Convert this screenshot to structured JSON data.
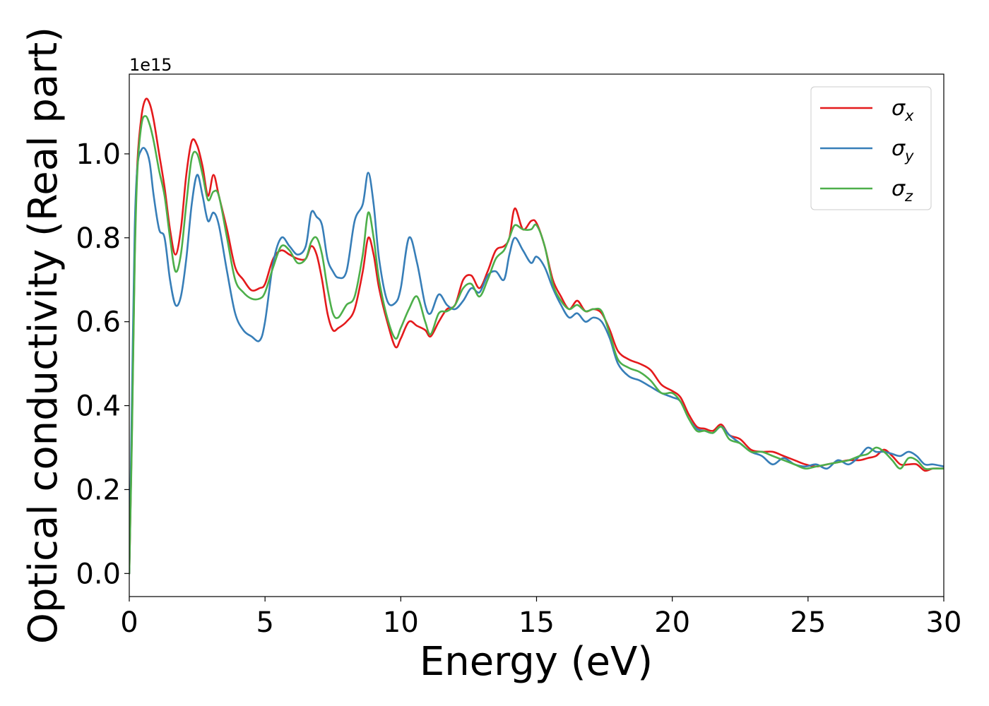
{
  "chart_data": {
    "type": "line",
    "xlabel": "Energy (eV)",
    "ylabel": "Optical conductivity (Real part)",
    "y_offset_label": "1e15",
    "xlim": [
      0,
      30
    ],
    "ylim": [
      -0.055,
      1.19
    ],
    "x_ticks": [
      0,
      5,
      10,
      15,
      20,
      25,
      30
    ],
    "x_tick_labels": [
      "0",
      "5",
      "10",
      "15",
      "20",
      "25",
      "30"
    ],
    "y_ticks": [
      0.0,
      0.2,
      0.4,
      0.6,
      0.8,
      1.0
    ],
    "y_tick_labels": [
      "0.0",
      "0.2",
      "0.4",
      "0.6",
      "0.8",
      "1.0"
    ],
    "grid": false,
    "legend_position": "top-right",
    "series": [
      {
        "name": "σx",
        "legend_symbol": "σ",
        "legend_subscript": "x",
        "color": "#e41a1c",
        "x": [
          0,
          0.1,
          0.2,
          0.3,
          0.45,
          0.6,
          0.75,
          0.9,
          1.1,
          1.3,
          1.5,
          1.7,
          1.9,
          2.1,
          2.3,
          2.5,
          2.7,
          2.9,
          3.1,
          3.3,
          3.6,
          3.9,
          4.2,
          4.5,
          4.8,
          5.0,
          5.3,
          5.6,
          5.9,
          6.2,
          6.5,
          6.7,
          6.9,
          7.1,
          7.3,
          7.5,
          7.7,
          8.0,
          8.3,
          8.6,
          8.8,
          9.0,
          9.2,
          9.5,
          9.8,
          10.0,
          10.3,
          10.6,
          10.9,
          11.1,
          11.4,
          11.7,
          12.0,
          12.3,
          12.6,
          12.9,
          13.2,
          13.5,
          13.8,
          14.0,
          14.2,
          14.5,
          14.8,
          15.0,
          15.3,
          15.6,
          15.9,
          16.2,
          16.5,
          16.8,
          17.1,
          17.4,
          17.7,
          18.0,
          18.4,
          18.8,
          19.2,
          19.6,
          20.0,
          20.3,
          20.6,
          20.9,
          21.2,
          21.5,
          21.8,
          22.1,
          22.5,
          22.9,
          23.3,
          23.7,
          24.1,
          24.5,
          24.9,
          25.3,
          25.7,
          26.1,
          26.5,
          26.9,
          27.2,
          27.5,
          27.8,
          28.1,
          28.4,
          28.7,
          29.0,
          29.3,
          29.6,
          30.0
        ],
        "values": [
          0.0,
          0.35,
          0.76,
          0.98,
          1.09,
          1.13,
          1.12,
          1.08,
          1.0,
          0.92,
          0.82,
          0.76,
          0.82,
          0.95,
          1.03,
          1.02,
          0.97,
          0.9,
          0.95,
          0.9,
          0.82,
          0.73,
          0.7,
          0.675,
          0.68,
          0.69,
          0.75,
          0.77,
          0.76,
          0.75,
          0.75,
          0.78,
          0.76,
          0.7,
          0.62,
          0.58,
          0.585,
          0.6,
          0.63,
          0.72,
          0.8,
          0.76,
          0.68,
          0.6,
          0.54,
          0.56,
          0.6,
          0.59,
          0.58,
          0.565,
          0.6,
          0.63,
          0.64,
          0.7,
          0.71,
          0.68,
          0.72,
          0.77,
          0.78,
          0.8,
          0.87,
          0.82,
          0.84,
          0.835,
          0.78,
          0.7,
          0.66,
          0.63,
          0.65,
          0.625,
          0.63,
          0.62,
          0.58,
          0.53,
          0.51,
          0.5,
          0.485,
          0.45,
          0.435,
          0.42,
          0.38,
          0.35,
          0.345,
          0.34,
          0.355,
          0.33,
          0.32,
          0.295,
          0.29,
          0.29,
          0.28,
          0.27,
          0.26,
          0.255,
          0.26,
          0.265,
          0.27,
          0.27,
          0.275,
          0.28,
          0.295,
          0.28,
          0.26,
          0.26,
          0.26,
          0.245,
          0.25,
          0.25
        ]
      },
      {
        "name": "σy",
        "legend_symbol": "σ",
        "legend_subscript": "y",
        "color": "#377eb8",
        "x": [
          0,
          0.1,
          0.2,
          0.3,
          0.45,
          0.6,
          0.75,
          0.9,
          1.1,
          1.3,
          1.5,
          1.7,
          1.9,
          2.1,
          2.3,
          2.5,
          2.7,
          2.9,
          3.1,
          3.3,
          3.6,
          3.9,
          4.2,
          4.5,
          4.8,
          5.0,
          5.3,
          5.6,
          5.9,
          6.2,
          6.5,
          6.7,
          6.9,
          7.1,
          7.3,
          7.5,
          7.7,
          8.0,
          8.3,
          8.6,
          8.8,
          9.0,
          9.2,
          9.5,
          9.8,
          10.0,
          10.3,
          10.6,
          10.9,
          11.1,
          11.4,
          11.7,
          12.0,
          12.3,
          12.6,
          12.9,
          13.2,
          13.5,
          13.8,
          14.0,
          14.2,
          14.5,
          14.8,
          15.0,
          15.3,
          15.6,
          15.9,
          16.2,
          16.5,
          16.8,
          17.1,
          17.4,
          17.7,
          18.0,
          18.4,
          18.8,
          19.2,
          19.6,
          20.0,
          20.3,
          20.6,
          20.9,
          21.2,
          21.5,
          21.8,
          22.1,
          22.5,
          22.9,
          23.3,
          23.7,
          24.1,
          24.5,
          24.9,
          25.3,
          25.7,
          26.1,
          26.5,
          26.9,
          27.2,
          27.5,
          27.8,
          28.1,
          28.4,
          28.7,
          29.0,
          29.3,
          29.6,
          30.0
        ],
        "values": [
          0.0,
          0.42,
          0.82,
          0.97,
          1.01,
          1.01,
          0.98,
          0.9,
          0.82,
          0.8,
          0.7,
          0.64,
          0.66,
          0.75,
          0.88,
          0.95,
          0.9,
          0.84,
          0.86,
          0.83,
          0.72,
          0.62,
          0.58,
          0.565,
          0.555,
          0.6,
          0.74,
          0.8,
          0.78,
          0.76,
          0.78,
          0.86,
          0.85,
          0.83,
          0.75,
          0.72,
          0.705,
          0.72,
          0.84,
          0.88,
          0.955,
          0.88,
          0.75,
          0.65,
          0.645,
          0.68,
          0.8,
          0.74,
          0.64,
          0.62,
          0.665,
          0.64,
          0.63,
          0.65,
          0.68,
          0.67,
          0.71,
          0.72,
          0.7,
          0.76,
          0.8,
          0.77,
          0.74,
          0.755,
          0.73,
          0.68,
          0.64,
          0.61,
          0.62,
          0.6,
          0.61,
          0.6,
          0.56,
          0.5,
          0.47,
          0.46,
          0.445,
          0.43,
          0.42,
          0.41,
          0.37,
          0.345,
          0.34,
          0.335,
          0.35,
          0.33,
          0.31,
          0.29,
          0.28,
          0.26,
          0.275,
          0.26,
          0.255,
          0.26,
          0.25,
          0.27,
          0.26,
          0.28,
          0.3,
          0.29,
          0.29,
          0.285,
          0.28,
          0.29,
          0.28,
          0.26,
          0.26,
          0.255
        ]
      },
      {
        "name": "σz",
        "legend_symbol": "σ",
        "legend_subscript": "z",
        "color": "#4daf4a",
        "x": [
          0,
          0.1,
          0.2,
          0.3,
          0.45,
          0.6,
          0.75,
          0.9,
          1.1,
          1.3,
          1.5,
          1.7,
          1.9,
          2.1,
          2.3,
          2.5,
          2.7,
          2.9,
          3.1,
          3.3,
          3.6,
          3.9,
          4.2,
          4.5,
          4.8,
          5.0,
          5.3,
          5.6,
          5.9,
          6.2,
          6.5,
          6.7,
          6.9,
          7.1,
          7.3,
          7.5,
          7.7,
          8.0,
          8.3,
          8.6,
          8.8,
          9.0,
          9.2,
          9.5,
          9.8,
          10.0,
          10.3,
          10.6,
          10.9,
          11.1,
          11.4,
          11.7,
          12.0,
          12.3,
          12.6,
          12.9,
          13.2,
          13.5,
          13.8,
          14.0,
          14.2,
          14.5,
          14.8,
          15.0,
          15.3,
          15.6,
          15.9,
          16.2,
          16.5,
          16.8,
          17.1,
          17.4,
          17.7,
          18.0,
          18.4,
          18.8,
          19.2,
          19.6,
          20.0,
          20.3,
          20.6,
          20.9,
          21.2,
          21.5,
          21.8,
          22.1,
          22.5,
          22.9,
          23.3,
          23.7,
          24.1,
          24.5,
          24.9,
          25.3,
          25.7,
          26.1,
          26.5,
          26.9,
          27.2,
          27.5,
          27.8,
          28.1,
          28.4,
          28.7,
          29.0,
          29.3,
          29.6,
          30.0
        ],
        "values": [
          0.0,
          0.33,
          0.74,
          0.96,
          1.07,
          1.09,
          1.07,
          1.03,
          0.96,
          0.9,
          0.8,
          0.72,
          0.76,
          0.88,
          0.99,
          1.0,
          0.95,
          0.89,
          0.91,
          0.9,
          0.8,
          0.7,
          0.67,
          0.655,
          0.655,
          0.67,
          0.73,
          0.78,
          0.77,
          0.74,
          0.75,
          0.79,
          0.8,
          0.76,
          0.68,
          0.62,
          0.61,
          0.64,
          0.66,
          0.76,
          0.86,
          0.8,
          0.7,
          0.61,
          0.56,
          0.585,
          0.63,
          0.66,
          0.6,
          0.57,
          0.62,
          0.625,
          0.64,
          0.68,
          0.69,
          0.66,
          0.7,
          0.75,
          0.77,
          0.8,
          0.83,
          0.82,
          0.82,
          0.83,
          0.78,
          0.69,
          0.65,
          0.63,
          0.64,
          0.625,
          0.63,
          0.625,
          0.57,
          0.51,
          0.49,
          0.48,
          0.46,
          0.43,
          0.43,
          0.41,
          0.37,
          0.34,
          0.34,
          0.335,
          0.35,
          0.32,
          0.31,
          0.29,
          0.29,
          0.28,
          0.27,
          0.26,
          0.25,
          0.255,
          0.26,
          0.265,
          0.27,
          0.28,
          0.285,
          0.3,
          0.29,
          0.27,
          0.25,
          0.275,
          0.27,
          0.25,
          0.25,
          0.25
        ]
      }
    ]
  }
}
